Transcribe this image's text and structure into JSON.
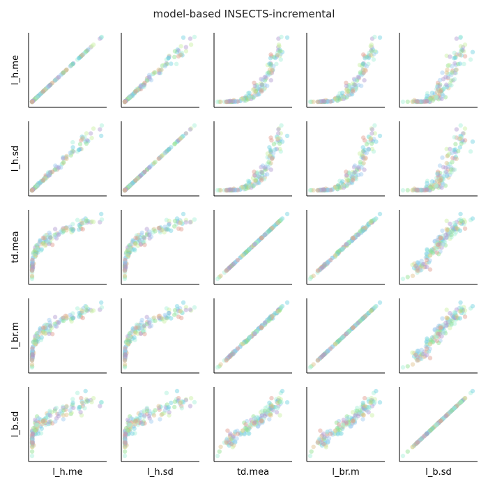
{
  "chart_data": {
    "type": "scatter",
    "title": "model-based INSECTS-incremental",
    "variables": [
      "l_h.me",
      "l_h.sd",
      "td.mea",
      "l_br.m",
      "l_b.sd"
    ],
    "grid": false,
    "legend": "none",
    "n_points": 150,
    "point_alpha": 0.45,
    "palette": [
      "#9ec9f0",
      "#a3f0d6",
      "#8ee08e",
      "#c8f0a0",
      "#e0c08c",
      "#e09a8c",
      "#b09ad0",
      "#6fd0e0"
    ]
  }
}
